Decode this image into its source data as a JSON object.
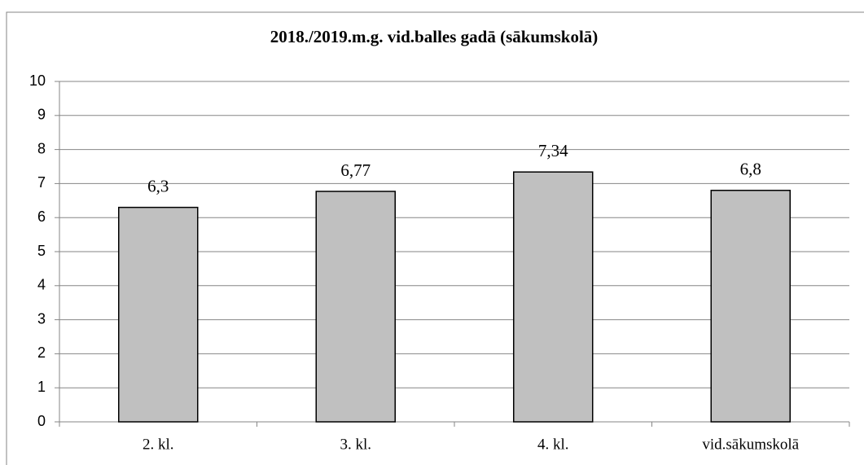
{
  "chart_data": {
    "type": "bar",
    "title": "2018./2019.m.g. vid.balles gadā (sākumskolā)",
    "categories": [
      "2. kl.",
      "3. kl.",
      "4. kl.",
      "vid.sākumskolā"
    ],
    "values": [
      6.3,
      6.77,
      7.34,
      6.8
    ],
    "value_labels": [
      "6,3",
      "6,77",
      "7,34",
      "6,8"
    ],
    "color": "#c0c0c0",
    "ylim": [
      0,
      10
    ],
    "yticks": [
      0,
      1,
      2,
      3,
      4,
      5,
      6,
      7,
      8,
      9,
      10
    ],
    "grid": true
  }
}
